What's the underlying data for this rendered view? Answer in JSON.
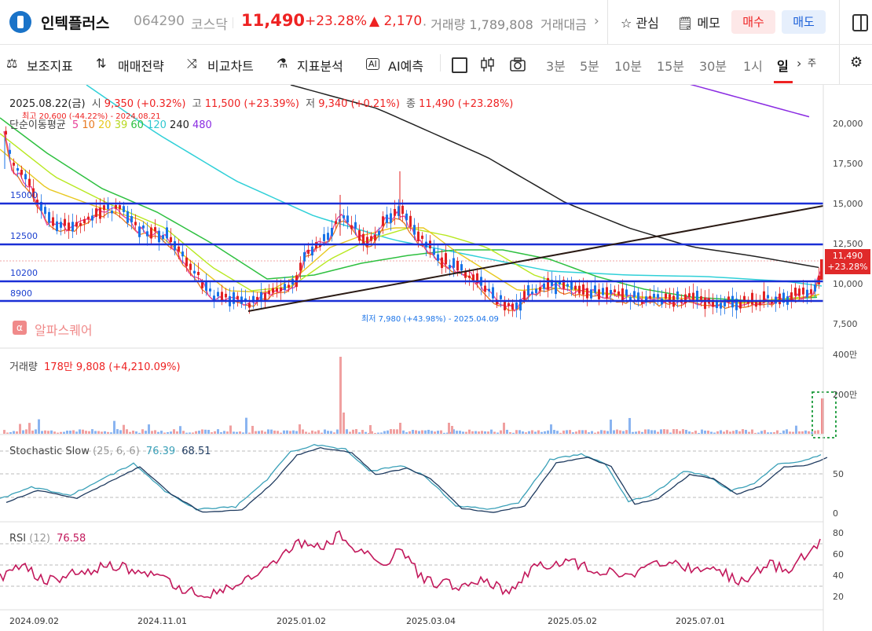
{
  "header": {
    "stock_name": "인텍플러스",
    "stock_code": "064290",
    "market": "코스닥",
    "price": "11,490",
    "change_pct": "+23.28%",
    "change_abs": "▲ 2,170",
    "volume": "· 거래량 1,789,808",
    "amount": "거래대금",
    "chevron": "›",
    "fav": "☆ 관심",
    "memo": "🗒 메모",
    "buy": "매수",
    "sell": "매도"
  },
  "toolbar": {
    "aux": "보조지표",
    "strategy": "매매전략",
    "compare": "비교차트",
    "analysis": "지표분석",
    "ai": "AI예측",
    "timeframes": [
      "3분",
      "5분",
      "10분",
      "15분",
      "30분",
      "1시",
      "일"
    ],
    "more": "›",
    "partial": "주"
  },
  "info": {
    "date": "2025.08.22(금)",
    "open_label": "시",
    "open_value": "9,350 (+0.32%)",
    "high_label": "고",
    "high_value": "11,500 (+23.39%)",
    "low_label": "저",
    "low_value": "9,340 (+0.21%)",
    "close_label": "종",
    "close_value": "11,490 (+23.28%)",
    "high_note": "최고 20,600 (-44.22%) - 2024.08.21",
    "ma_label": "단순이동평균",
    "ma_periods": [
      "5",
      "10",
      "20",
      "39",
      "60",
      "120",
      "240",
      "480"
    ],
    "low_note": "최저 7,980 (+43.98%) - 2025.04.09",
    "watermark": "알파스퀘어",
    "watermark_icon": "α"
  },
  "levels": [
    "15000",
    "12500",
    "10200",
    "8900"
  ],
  "y_ticks": [
    "20,000",
    "17,500",
    "15,000",
    "12,500",
    "10,000",
    "7,500"
  ],
  "price_badge": {
    "price": "11,490",
    "pct": "+23.28%"
  },
  "volume_panel": {
    "label": "거래량",
    "value": "178만 9,808 (+4,210.09%)",
    "ticks": [
      "400만",
      "200만"
    ]
  },
  "stoch_panel": {
    "label": "Stochastic Slow",
    "params": "(25, 6, 6)",
    "k": "76.39",
    "d": "68.51",
    "ticks": [
      "50",
      "0"
    ]
  },
  "rsi_panel": {
    "label": "RSI",
    "params": "(12)",
    "value": "76.58",
    "ticks": [
      "80",
      "60",
      "40",
      "20"
    ]
  },
  "x_ticks": [
    "2024.09.02",
    "2024.11.01",
    "2025.01.02",
    "2025.03.04",
    "2025.05.02",
    "2025.07.01"
  ],
  "colors": {
    "up": "#e22222",
    "down": "#1a73e8",
    "level_line": "#1a2fd6",
    "ma5": "#e8409a",
    "ma10": "#e87a20",
    "ma20": "#e8c820",
    "ma39": "#b8e820",
    "ma60": "#2ec040",
    "ma120": "#30d0d8",
    "ma240": "#222222",
    "ma480": "#8a2be2",
    "rsi": "#c2185b",
    "stoch_k": "#3aa0b8",
    "stoch_d": "#1e3a5f"
  }
}
